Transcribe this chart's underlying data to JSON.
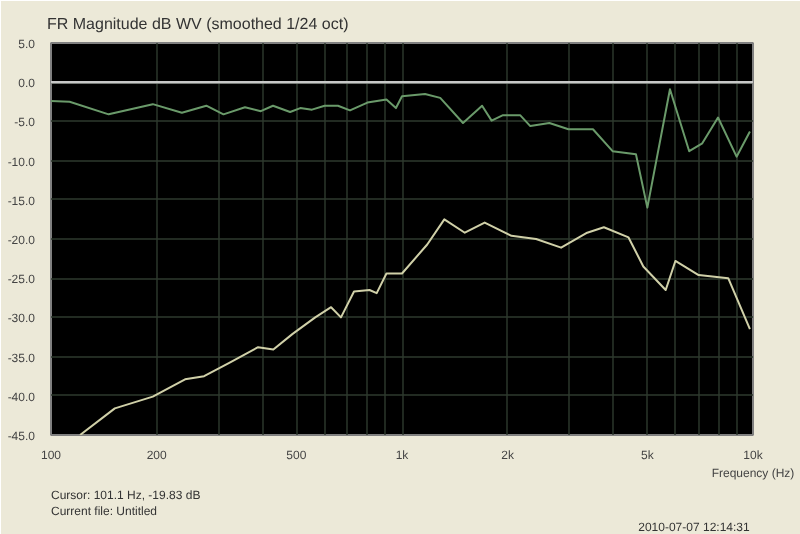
{
  "chart_data": {
    "type": "line",
    "title": "FR Magnitude dB WV (smoothed 1/24 oct)",
    "xlabel": "Frequency (Hz)",
    "log": "x",
    "grid": true,
    "marker": "none",
    "line_style": "solid",
    "xlim": [
      100,
      10000
    ],
    "ylim": [
      -45,
      5
    ],
    "xticks": [
      100,
      200,
      {
        "value": 300,
        "label": null
      },
      {
        "value": 400,
        "label": null
      },
      500,
      {
        "value": 600,
        "label": null
      },
      {
        "value": 700,
        "label": null
      },
      {
        "value": 800,
        "label": null
      },
      {
        "value": 900,
        "label": null
      },
      {
        "value": 1000,
        "label": "1k"
      },
      {
        "value": 2000,
        "label": "2k"
      },
      {
        "value": 3000,
        "label": null
      },
      {
        "value": 4000,
        "label": null
      },
      {
        "value": 5000,
        "label": "5k"
      },
      {
        "value": 6000,
        "label": null
      },
      {
        "value": 7000,
        "label": null
      },
      {
        "value": 8000,
        "label": null
      },
      {
        "value": 9000,
        "label": null
      },
      {
        "value": 10000,
        "label": "10k"
      }
    ],
    "yticks": [
      {
        "value": 5,
        "label": "5.0"
      },
      {
        "value": 0,
        "label": "0.0"
      },
      {
        "value": -5,
        "label": "-5.0"
      },
      {
        "value": -10,
        "label": "-10.0"
      },
      {
        "value": -15,
        "label": "-15.0"
      },
      {
        "value": -20,
        "label": "-20.0"
      },
      {
        "value": -25,
        "label": "-25.0"
      },
      {
        "value": -30,
        "label": "-30.0"
      },
      {
        "value": -35,
        "label": "-35.0"
      },
      {
        "value": -40,
        "label": "-40.0"
      },
      {
        "value": -45,
        "label": "-45.0"
      }
    ],
    "ref_lines": [
      {
        "axis": "y",
        "value": 0,
        "color": "#c8c8c8"
      }
    ],
    "series": [
      {
        "color": "#6a9a6a",
        "x": [
          100,
          113,
          146,
          195,
          236,
          277,
          310,
          357,
          396,
          429,
          480,
          513,
          554,
          602,
          657,
          711,
          797,
          903,
          961,
          1000,
          1163,
          1285,
          1492,
          1691,
          1800,
          1940,
          2170,
          2320,
          2630,
          2980,
          3500,
          3980,
          4640,
          5000,
          5800,
          6580,
          7170,
          7950,
          8980,
          9800
        ],
        "values": [
          -2.4,
          -2.5,
          -4.1,
          -2.8,
          -3.9,
          -3.0,
          -4.1,
          -3.2,
          -3.7,
          -3.0,
          -3.8,
          -3.3,
          -3.5,
          -3.0,
          -3.0,
          -3.6,
          -2.6,
          -2.2,
          -3.3,
          -1.8,
          -1.5,
          -2.0,
          -5.2,
          -3.0,
          -4.9,
          -4.2,
          -4.2,
          -5.6,
          -5.2,
          -6.0,
          -6.0,
          -8.8,
          -9.2,
          -16.0,
          -0.9,
          -8.8,
          -7.8,
          -4.5,
          -9.5,
          -6.3
        ]
      },
      {
        "color": "#d0d0a8",
        "x": [
          121,
          152,
          195,
          241,
          273,
          322,
          389,
          430,
          488,
          566,
          628,
          670,
          730,
          808,
          847,
          903,
          1000,
          1180,
          1320,
          1510,
          1720,
          2050,
          2410,
          2840,
          3370,
          3760,
          4420,
          4870,
          5640,
          6010,
          7000,
          8500,
          9800
        ],
        "values": [
          -45.0,
          -41.6,
          -40.1,
          -37.9,
          -37.5,
          -35.8,
          -33.8,
          -34.1,
          -32.1,
          -30.0,
          -28.7,
          -30.0,
          -26.7,
          -26.5,
          -26.9,
          -24.4,
          -24.4,
          -20.7,
          -17.5,
          -19.2,
          -17.9,
          -19.6,
          -20.0,
          -21.1,
          -19.2,
          -18.5,
          -19.8,
          -23.5,
          -26.5,
          -22.8,
          -24.6,
          -25.0,
          -31.5
        ]
      }
    ],
    "annotations": [
      "Cursor: 101.1 Hz, -19.83 dB",
      "Current file: Untitled",
      "2010-07-07  12:14:31"
    ]
  }
}
